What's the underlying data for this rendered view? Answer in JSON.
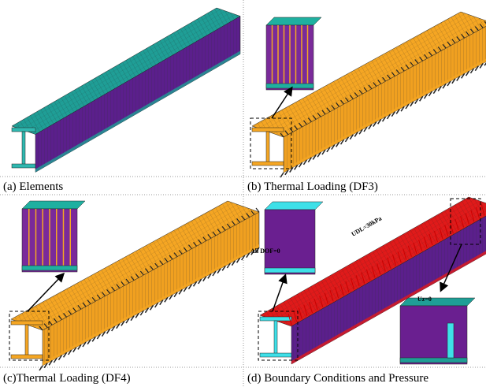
{
  "panels": [
    {
      "caption": "(a) Elements"
    },
    {
      "caption": "(b) Thermal Loading (DF3)"
    },
    {
      "caption": "(c)Thermal Loading (DF4)"
    },
    {
      "caption": "(d) Boundary Conditions and Pressure",
      "annotations": [
        "UDL=30kPa",
        "All DOF=0",
        "Uz=0"
      ]
    }
  ]
}
